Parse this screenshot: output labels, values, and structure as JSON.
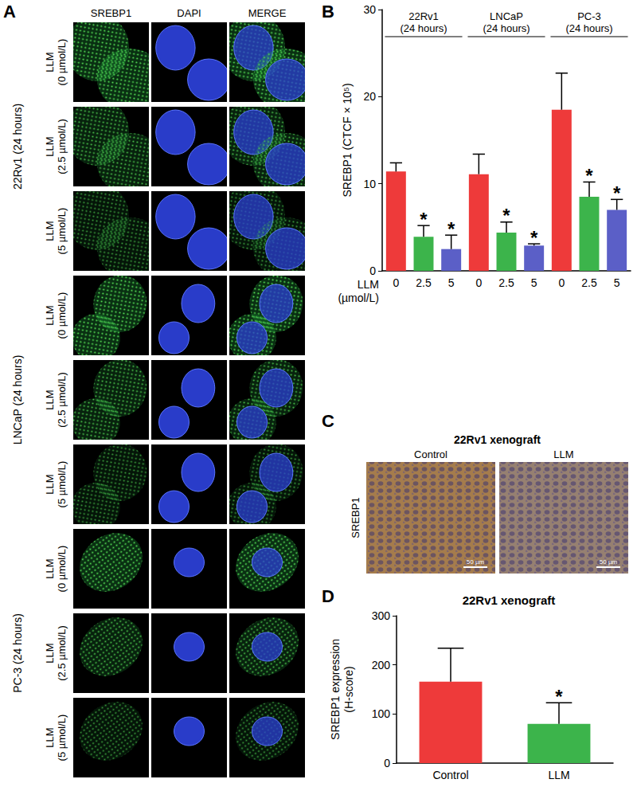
{
  "panel_labels": {
    "a": "A",
    "b": "B",
    "c": "C",
    "d": "D"
  },
  "panel_a": {
    "columns": [
      "SREBP1",
      "DAPI",
      "MERGE"
    ],
    "groups": [
      {
        "label": "22Rv1 (24 hours)",
        "rows": [
          "LLM\n(0 µmol/L)",
          "LLM\n(2.5 µmol/L)",
          "LLM\n(5 µmol/L)"
        ]
      },
      {
        "label": "LNCaP (24 hours)",
        "rows": [
          "LLM\n(0 µmol/L)",
          "LLM\n(2.5 µmol/L)",
          "LLM\n(5 µmol/L)"
        ]
      },
      {
        "label": "PC-3 (24 hours)",
        "rows": [
          "LLM\n(0 µmol/L)",
          "LLM\n(2.5 µmol/L)",
          "LLM\n(5 µmol/L)"
        ]
      }
    ]
  },
  "panel_c": {
    "title": "22Rv1 xenograft",
    "columns": [
      "Control",
      "LLM"
    ],
    "row_label": "SREBP1",
    "scale_bar": "50 µm"
  },
  "chart_data": [
    {
      "type": "bar",
      "group_labels": [
        "22Rv1\n(24 hours)",
        "LNCaP\n(24 hours)",
        "PC-3\n(24 hours)"
      ],
      "categories": [
        "0",
        "2.5",
        "5",
        "0",
        "2.5",
        "5",
        "0",
        "2.5",
        "5"
      ],
      "values": [
        11.4,
        3.9,
        2.5,
        11.1,
        4.4,
        2.9,
        18.5,
        8.5,
        7.0
      ],
      "errors": [
        1.0,
        1.3,
        1.6,
        2.3,
        1.2,
        0.2,
        4.2,
        1.7,
        1.2
      ],
      "colors": [
        "#ee3a3a",
        "#3cb44b",
        "#5b5fc7",
        "#ee3a3a",
        "#3cb44b",
        "#5b5fc7",
        "#ee3a3a",
        "#3cb44b",
        "#5b5fc7"
      ],
      "significance": [
        null,
        "*",
        "*",
        null,
        "*",
        "*",
        null,
        "*",
        "*"
      ],
      "ylabel": "SREBP1 (CTCF × 10⁵)",
      "xlabel": "LLM\n(µmol/L)",
      "ylim": [
        0,
        30
      ],
      "yticks": [
        0,
        10,
        20,
        30
      ],
      "grid": false
    },
    {
      "type": "bar",
      "title": "22Rv1 xenograft",
      "categories": [
        "Control",
        "LLM"
      ],
      "values": [
        166,
        80
      ],
      "errors": [
        68,
        43
      ],
      "colors": [
        "#ee3a3a",
        "#3cb44b"
      ],
      "significance": [
        null,
        "*"
      ],
      "ylabel": "SREBP1 expression\n(H-score)",
      "ylim": [
        0,
        300
      ],
      "yticks": [
        0,
        100,
        200,
        300
      ],
      "grid": false
    }
  ]
}
